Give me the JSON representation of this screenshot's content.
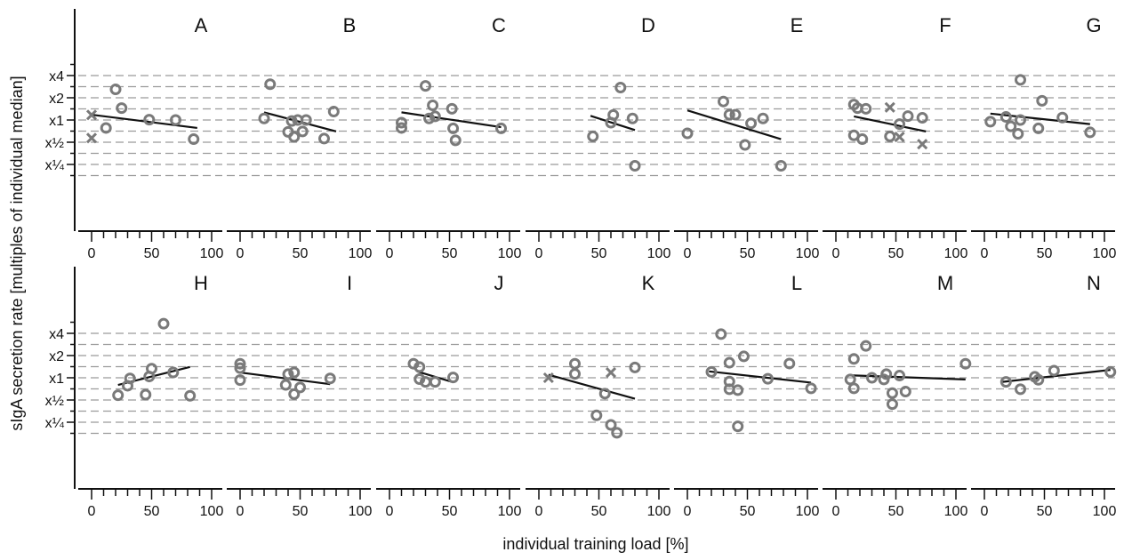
{
  "figure": {
    "ylabel": "sIgA secretion rate [multiples of individual median]",
    "xlabel": "individual training load [%]"
  },
  "chart_data": {
    "type": "scatter",
    "y_scale": "log2",
    "y_ticks": [
      {
        "value": 0.25,
        "label": "x¼"
      },
      {
        "value": 0.5,
        "label": "x½"
      },
      {
        "value": 1,
        "label": "x1"
      },
      {
        "value": 2,
        "label": "x2"
      },
      {
        "value": 4,
        "label": "x4"
      }
    ],
    "x_ticks": [
      {
        "value": 0,
        "label": "0"
      },
      {
        "value": 50,
        "label": "50"
      },
      {
        "value": 100,
        "label": "100"
      }
    ],
    "xlim": [
      0,
      105
    ],
    "ylim": [
      0.15,
      6.2
    ],
    "grid": true,
    "panels": [
      {
        "label": "A",
        "points": [
          [
            12,
            0.78
          ],
          [
            20,
            2.6
          ],
          [
            25,
            1.45
          ],
          [
            48,
            1.01
          ],
          [
            70,
            1.0
          ],
          [
            85,
            0.55
          ]
        ],
        "excluded": [
          [
            0,
            1.17
          ],
          [
            0,
            0.57
          ]
        ],
        "fit": [
          [
            0,
            1.18
          ],
          [
            88,
            0.78
          ]
        ]
      },
      {
        "label": "B",
        "points": [
          [
            20,
            1.05
          ],
          [
            25,
            3.05
          ],
          [
            40,
            0.69
          ],
          [
            43,
            0.97
          ],
          [
            45,
            0.59
          ],
          [
            48,
            1.0
          ],
          [
            52,
            0.7
          ],
          [
            55,
            1.0
          ],
          [
            70,
            0.56
          ],
          [
            78,
            1.3
          ]
        ],
        "fit": [
          [
            20,
            1.27
          ],
          [
            80,
            0.7
          ]
        ]
      },
      {
        "label": "C",
        "points": [
          [
            10,
            0.92
          ],
          [
            10,
            0.78
          ],
          [
            30,
            2.9
          ],
          [
            33,
            1.05
          ],
          [
            36,
            1.58
          ],
          [
            38,
            1.12
          ],
          [
            52,
            1.42
          ],
          [
            53,
            0.77
          ],
          [
            55,
            0.53
          ],
          [
            93,
            0.77
          ]
        ],
        "fit": [
          [
            10,
            1.27
          ],
          [
            93,
            0.8
          ]
        ]
      },
      {
        "label": "D",
        "points": [
          [
            45,
            0.6
          ],
          [
            60,
            0.92
          ],
          [
            62,
            1.17
          ],
          [
            68,
            2.75
          ],
          [
            78,
            1.05
          ],
          [
            80,
            0.24
          ]
        ],
        "fit": [
          [
            43,
            1.14
          ],
          [
            80,
            0.73
          ]
        ]
      },
      {
        "label": "E",
        "points": [
          [
            0,
            0.66
          ],
          [
            30,
            1.78
          ],
          [
            35,
            1.18
          ],
          [
            40,
            1.18
          ],
          [
            48,
            0.46
          ],
          [
            53,
            0.9
          ],
          [
            63,
            1.05
          ],
          [
            78,
            0.24
          ]
        ],
        "fit": [
          [
            0,
            1.35
          ],
          [
            78,
            0.55
          ]
        ]
      },
      {
        "label": "F",
        "points": [
          [
            15,
            1.62
          ],
          [
            15,
            0.62
          ],
          [
            18,
            1.45
          ],
          [
            22,
            0.55
          ],
          [
            25,
            1.42
          ],
          [
            45,
            0.6
          ],
          [
            53,
            0.88
          ],
          [
            60,
            1.13
          ],
          [
            72,
            1.07
          ]
        ],
        "excluded": [
          [
            45,
            1.48
          ],
          [
            53,
            0.59
          ],
          [
            72,
            0.47
          ]
        ],
        "fit": [
          [
            15,
            1.12
          ],
          [
            75,
            0.7
          ]
        ]
      },
      {
        "label": "G",
        "points": [
          [
            5,
            0.95
          ],
          [
            18,
            1.1
          ],
          [
            22,
            0.82
          ],
          [
            28,
            0.65
          ],
          [
            30,
            1.0
          ],
          [
            30,
            3.5
          ],
          [
            45,
            0.77
          ],
          [
            48,
            1.82
          ],
          [
            65,
            1.08
          ],
          [
            88,
            0.68
          ]
        ],
        "fit": [
          [
            5,
            1.22
          ],
          [
            88,
            0.88
          ]
        ]
      },
      {
        "label": "H",
        "points": [
          [
            22,
            0.58
          ],
          [
            30,
            0.78
          ],
          [
            32,
            0.98
          ],
          [
            45,
            0.59
          ],
          [
            48,
            1.04
          ],
          [
            50,
            1.33
          ],
          [
            60,
            5.4
          ],
          [
            68,
            1.18
          ],
          [
            82,
            0.57
          ]
        ],
        "fit": [
          [
            22,
            0.8
          ],
          [
            82,
            1.4
          ]
        ]
      },
      {
        "label": "I",
        "points": [
          [
            0,
            1.55
          ],
          [
            0,
            1.35
          ],
          [
            0,
            0.93
          ],
          [
            38,
            0.8
          ],
          [
            40,
            1.12
          ],
          [
            45,
            0.6
          ],
          [
            45,
            1.18
          ],
          [
            50,
            0.74
          ],
          [
            75,
            0.98
          ]
        ],
        "fit": [
          [
            0,
            1.18
          ],
          [
            75,
            0.82
          ]
        ]
      },
      {
        "label": "J",
        "points": [
          [
            20,
            1.55
          ],
          [
            25,
            1.4
          ],
          [
            25,
            0.96
          ],
          [
            30,
            0.88
          ],
          [
            38,
            0.88
          ],
          [
            53,
            1.01
          ]
        ],
        "fit": [
          [
            23,
            1.22
          ],
          [
            53,
            0.87
          ]
        ]
      },
      {
        "label": "K",
        "points": [
          [
            30,
            1.55
          ],
          [
            30,
            1.13
          ],
          [
            48,
            0.31
          ],
          [
            55,
            0.61
          ],
          [
            60,
            0.23
          ],
          [
            65,
            0.18
          ],
          [
            80,
            1.38
          ]
        ],
        "excluded": [
          [
            8,
            1.0
          ],
          [
            60,
            1.18
          ]
        ],
        "fit": [
          [
            8,
            1.1
          ],
          [
            80,
            0.52
          ]
        ]
      },
      {
        "label": "L",
        "points": [
          [
            20,
            1.2
          ],
          [
            28,
            3.9
          ],
          [
            35,
            0.89
          ],
          [
            35,
            0.7
          ],
          [
            35,
            1.6
          ],
          [
            42,
            0.68
          ],
          [
            42,
            0.22
          ],
          [
            47,
            1.95
          ],
          [
            67,
            0.97
          ],
          [
            85,
            1.56
          ],
          [
            103,
            0.72
          ]
        ],
        "fit": [
          [
            18,
            1.22
          ],
          [
            103,
            0.86
          ]
        ]
      },
      {
        "label": "M",
        "points": [
          [
            12,
            0.95
          ],
          [
            15,
            1.8
          ],
          [
            15,
            0.72
          ],
          [
            25,
            2.7
          ],
          [
            30,
            1.0
          ],
          [
            40,
            0.95
          ],
          [
            42,
            1.12
          ],
          [
            47,
            0.62
          ],
          [
            47,
            0.44
          ],
          [
            53,
            1.07
          ],
          [
            58,
            0.65
          ],
          [
            108,
            1.55
          ]
        ],
        "fit": [
          [
            12,
            1.08
          ],
          [
            108,
            0.95
          ]
        ]
      },
      {
        "label": "N",
        "points": [
          [
            18,
            0.88
          ],
          [
            30,
            0.7
          ],
          [
            42,
            1.03
          ],
          [
            45,
            0.94
          ],
          [
            58,
            1.25
          ],
          [
            105,
            1.2
          ]
        ],
        "fit": [
          [
            15,
            0.88
          ],
          [
            105,
            1.28
          ]
        ]
      }
    ]
  }
}
